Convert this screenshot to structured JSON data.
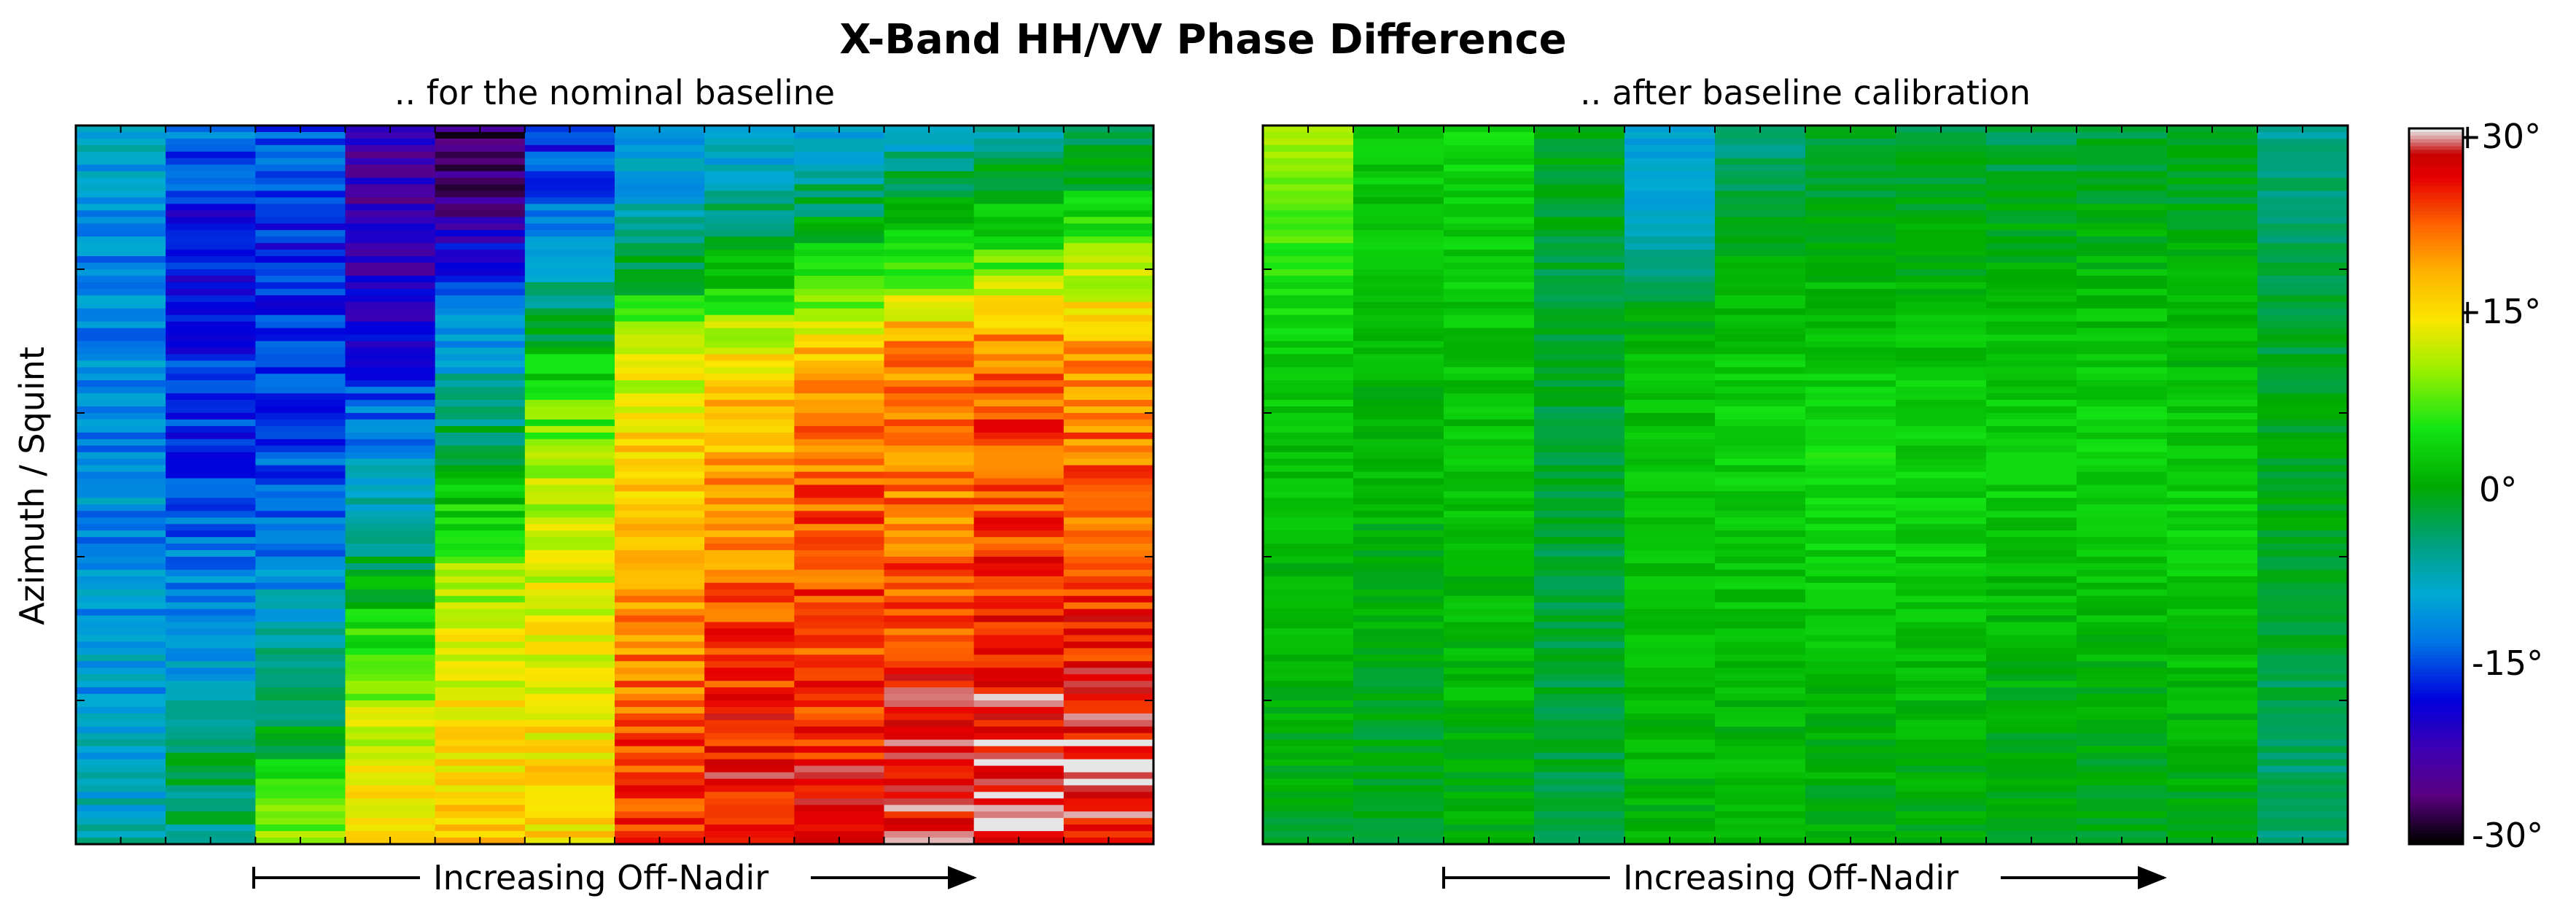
{
  "chart_data": [
    {
      "type": "heatmap",
      "title": "X-Band HH/VV Phase Difference",
      "subtitle": ".. for the nominal baseline",
      "xlabel": "Increasing Off-Nadir",
      "ylabel": "Azimuth / Squint",
      "unit": "°",
      "vmin": -30,
      "vmax": 30,
      "columns": 12,
      "column_profiles": [
        [
          -9,
          -11,
          -12,
          -12,
          -12,
          -11,
          -11,
          -10,
          -10,
          -9,
          -7
        ],
        [
          -12,
          -17,
          -18,
          -17,
          -16,
          -15,
          -13,
          -12,
          -7,
          -3,
          -5
        ],
        [
          -15,
          -16,
          -17,
          -16,
          -15,
          -14,
          -12,
          -8,
          -4,
          2,
          10
        ],
        [
          -22,
          -23,
          -21,
          -18,
          -13,
          -8,
          -3,
          4,
          10,
          13,
          13
        ],
        [
          -27,
          -25,
          -17,
          -10,
          -5,
          2,
          8,
          12,
          14,
          15,
          16
        ],
        [
          -17,
          -14,
          -8,
          0,
          7,
          10,
          11,
          13,
          14,
          15,
          15
        ],
        [
          -13,
          -8,
          -2,
          10,
          15,
          17,
          18,
          20,
          22,
          24,
          24
        ],
        [
          -11,
          -4,
          1,
          13,
          17,
          19,
          20,
          23,
          25,
          26,
          26
        ],
        [
          -10,
          -3,
          3,
          16,
          20,
          22,
          23,
          23,
          24,
          26,
          26
        ],
        [
          -9,
          -1,
          6,
          20,
          21,
          21,
          22,
          23,
          26,
          27,
          27
        ],
        [
          -6,
          0,
          8,
          20,
          23,
          23,
          24,
          25,
          27,
          28,
          28
        ],
        [
          -4,
          2,
          11,
          19,
          21,
          22,
          23,
          25,
          26,
          27,
          26
        ]
      ]
    },
    {
      "type": "heatmap",
      "subtitle": ".. after baseline calibration",
      "xlabel": "Increasing Off-Nadir",
      "vmin": -30,
      "vmax": 30,
      "columns": 12,
      "column_profiles": [
        [
          11,
          8,
          5,
          3,
          2,
          2,
          1,
          1,
          0,
          0,
          -1
        ],
        [
          3,
          2,
          2,
          1,
          1,
          1,
          0,
          0,
          -1,
          -1,
          -1
        ],
        [
          4,
          3,
          3,
          2,
          2,
          2,
          1,
          1,
          1,
          0,
          0
        ],
        [
          -1,
          -1,
          -2,
          -2,
          -2,
          -2,
          -2,
          -2,
          -2,
          -2,
          -2
        ],
        [
          -10,
          -9,
          -4,
          1,
          2,
          2,
          2,
          2,
          1,
          1,
          0
        ],
        [
          -5,
          -2,
          1,
          2,
          3,
          3,
          2,
          2,
          1,
          1,
          1
        ],
        [
          -2,
          -1,
          1,
          2,
          4,
          4,
          3,
          2,
          1,
          0,
          0
        ],
        [
          -2,
          -1,
          0,
          2,
          3,
          3,
          3,
          2,
          1,
          0,
          0
        ],
        [
          -3,
          -1,
          0,
          2,
          3,
          3,
          2,
          1,
          0,
          -1,
          -1
        ],
        [
          -2,
          -1,
          1,
          2,
          3,
          3,
          2,
          1,
          0,
          -1,
          -1
        ],
        [
          -2,
          -1,
          0,
          1,
          2,
          3,
          3,
          2,
          1,
          0,
          -1
        ],
        [
          -6,
          -4,
          -3,
          -2,
          -1,
          -1,
          -1,
          -2,
          -3,
          -4,
          -4
        ]
      ]
    }
  ],
  "colorbar": {
    "ticks": [
      "+30°",
      "+15°",
      "0°",
      "-15°",
      "-30°"
    ]
  }
}
